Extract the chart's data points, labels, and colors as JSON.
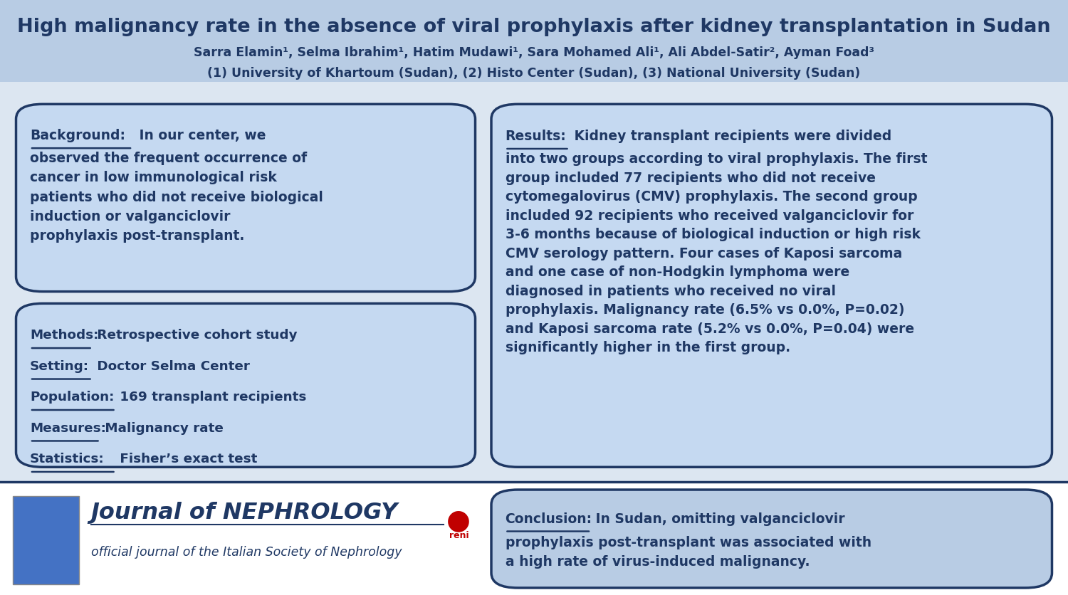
{
  "title": "High malignancy rate in the absence of viral prophylaxis after kidney transplantation in Sudan",
  "authors": "Sarra Elamin¹, Selma Ibrahim¹, Hatim Mudawi¹, Sara Mohamed Ali¹, Ali Abdel-Satir², Ayman Foad³",
  "affiliations": "(1) University of Khartoum (Sudan), (2) Histo Center (Sudan), (3) National University (Sudan)",
  "header_bg": "#b8cce4",
  "header_text_color": "#1f3864",
  "body_bg": "#dce6f1",
  "box_bg": "#c5d9f1",
  "box_border": "#1f3864",
  "footer_bg": "#ffffff",
  "conclusion_box_bg": "#b8cce4",
  "text_color": "#1f3864",
  "background_bg": "#dce6f1",
  "background_title": "Background:",
  "background_text": "In our center, we\nobserved the frequent occurrence of\ncancer in low immunological risk\npatients who did not receive biological\ninduction or valganciclovir\nprophylaxis post-transplant.",
  "methods_title": "Methods:",
  "methods_text": "Retrospective cohort study",
  "setting_title": "Setting:",
  "setting_text": "Doctor Selma Center",
  "population_title": "Population:",
  "population_text": "169 transplant recipients",
  "measures_title": "Measures:",
  "measures_text": "Malignancy rate",
  "statistics_title": "Statistics:",
  "statistics_text": "Fisher’s exact test",
  "results_title": "Results:",
  "results_line1": "Kidney transplant recipients were divided",
  "results_rest": "into two groups according to viral prophylaxis. The first\ngroup included 77 recipients who did not receive\ncytomegalovirus (CMV) prophylaxis. The second group\nincluded 92 recipients who received valganciclovir for\n3-6 months because of biological induction or high risk\nCMV serology pattern. Four cases of Kaposi sarcoma\nand one case of non-Hodgkin lymphoma were\ndiagnosed in patients who received no viral\nprophylaxis. Malignancy rate (6.5% vs 0.0%, P=0.02)\nand Kaposi sarcoma rate (5.2% vs 0.0%, P=0.04) were\nsignificantly higher in the first group.",
  "conclusion_title": "Conclusion:",
  "conclusion_line1": "In Sudan, omitting valganciclovir",
  "conclusion_rest": "prophylaxis post-transplant was associated with\na high rate of virus-induced malignancy.",
  "journal_name": "Journal of NEPHROLOGY",
  "journal_subtitle": "official journal of the Italian Society of Nephrology"
}
